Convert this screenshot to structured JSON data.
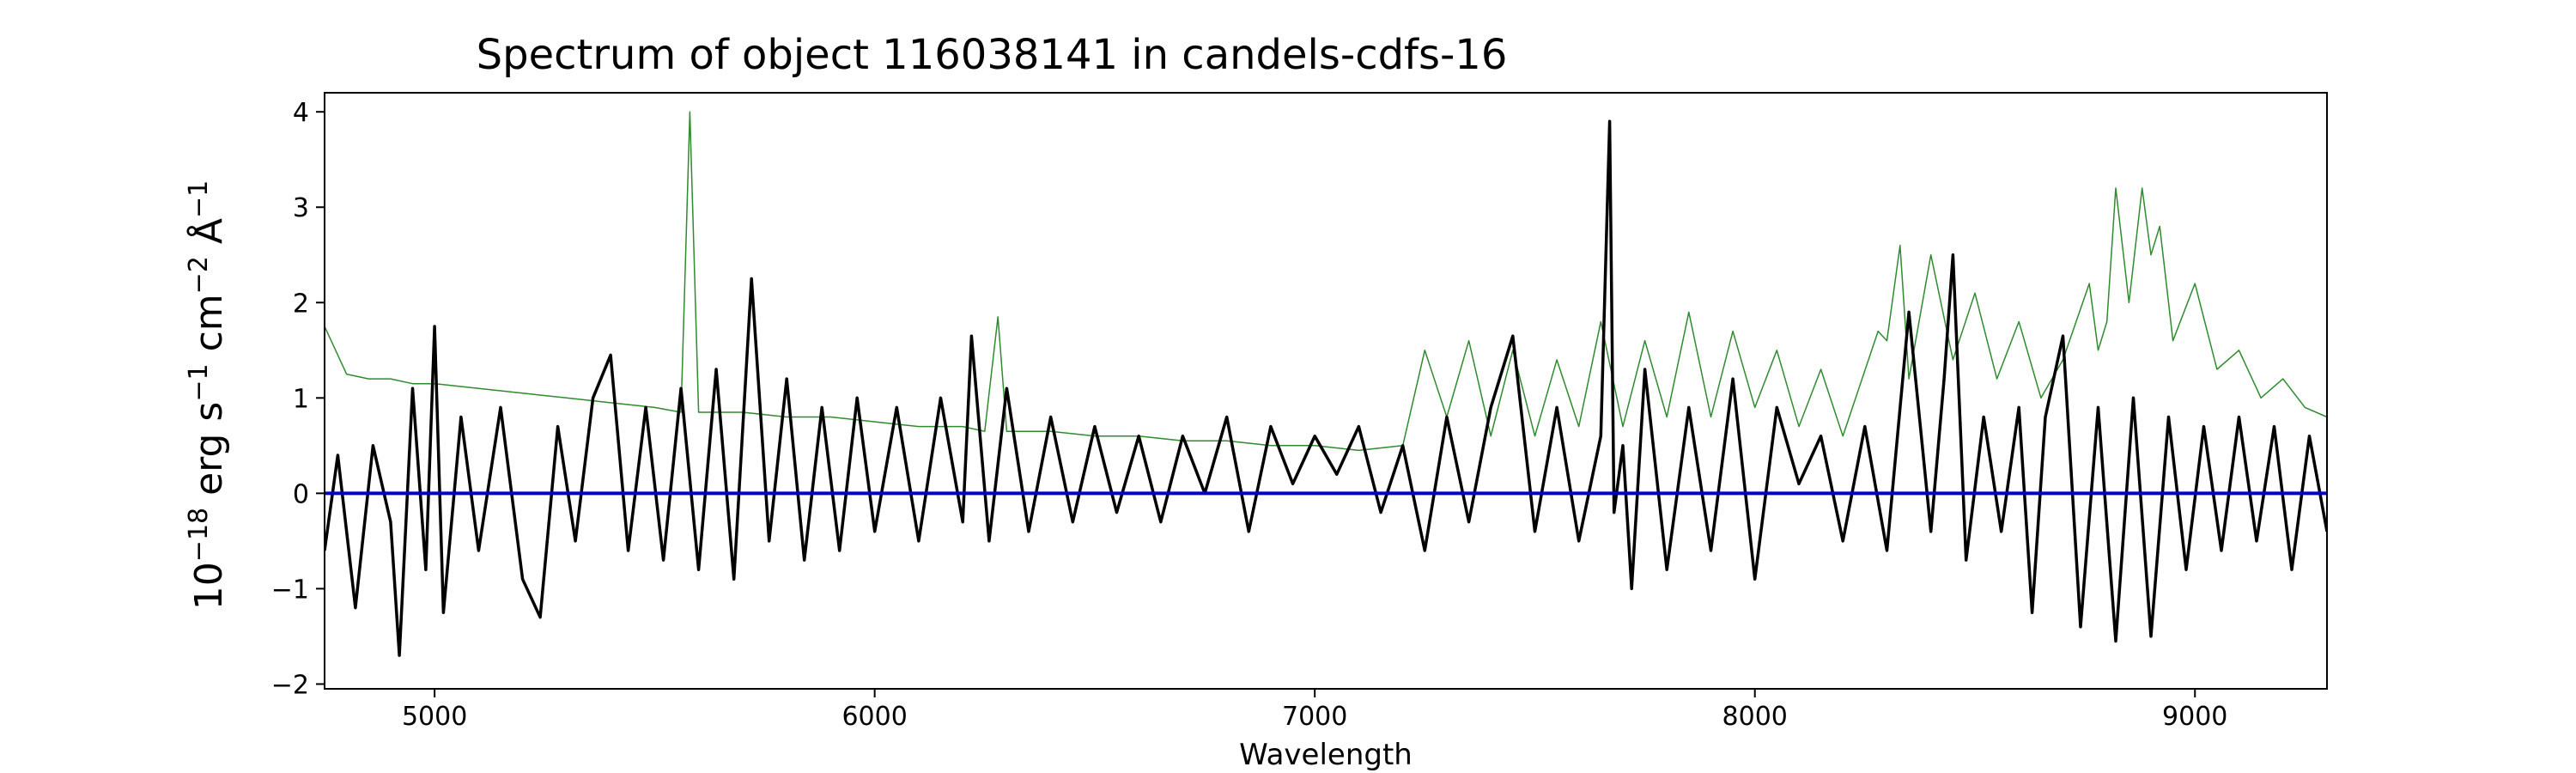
{
  "chart_data": {
    "type": "line",
    "title": "Spectrum of object 116038141 in candels-cdfs-16",
    "xlabel": "Wavelength",
    "ylabel": {
      "base": "10",
      "exponent": "−18",
      "parts": [
        {
          "text": " erg s"
        },
        {
          "sup": "−1"
        },
        {
          "text": " cm"
        },
        {
          "sup": "−2"
        },
        {
          "text": " Å"
        },
        {
          "sup": "−1"
        }
      ]
    },
    "xlim": [
      4750,
      9300
    ],
    "ylim": [
      -2.05,
      4.2
    ],
    "xticks": [
      5000,
      6000,
      7000,
      8000,
      9000
    ],
    "yticks": [
      -2,
      -1,
      0,
      1,
      2,
      3,
      4
    ],
    "grid": false,
    "legend": "none",
    "series": [
      {
        "role": "error",
        "color": "#2e8b2e",
        "x": [
          4750,
          4800,
          4850,
          4900,
          4950,
          5000,
          5100,
          5200,
          5300,
          5400,
          5500,
          5560,
          5580,
          5600,
          5700,
          5800,
          5900,
          6000,
          6100,
          6200,
          6250,
          6280,
          6300,
          6400,
          6500,
          6600,
          6700,
          6800,
          6900,
          7000,
          7100,
          7200,
          7250,
          7300,
          7350,
          7400,
          7450,
          7500,
          7550,
          7600,
          7650,
          7700,
          7750,
          7800,
          7850,
          7900,
          7950,
          8000,
          8050,
          8100,
          8150,
          8200,
          8280,
          8300,
          8330,
          8350,
          8400,
          8450,
          8500,
          8550,
          8600,
          8650,
          8700,
          8760,
          8780,
          8800,
          8820,
          8850,
          8880,
          8900,
          8920,
          8950,
          9000,
          9050,
          9100,
          9150,
          9200,
          9250,
          9300
        ],
        "values": [
          1.75,
          1.25,
          1.2,
          1.2,
          1.15,
          1.15,
          1.1,
          1.05,
          1.0,
          0.95,
          0.9,
          0.85,
          4.0,
          0.85,
          0.85,
          0.8,
          0.8,
          0.75,
          0.7,
          0.7,
          0.65,
          1.85,
          0.65,
          0.65,
          0.6,
          0.6,
          0.55,
          0.55,
          0.5,
          0.5,
          0.45,
          0.5,
          1.5,
          0.8,
          1.6,
          0.6,
          1.5,
          0.6,
          1.4,
          0.7,
          1.8,
          0.7,
          1.6,
          0.8,
          1.9,
          0.8,
          1.7,
          0.9,
          1.5,
          0.7,
          1.3,
          0.6,
          1.7,
          1.6,
          2.6,
          1.2,
          2.5,
          1.4,
          2.1,
          1.2,
          1.8,
          1.0,
          1.4,
          2.2,
          1.5,
          1.8,
          3.2,
          2.0,
          3.2,
          2.5,
          2.8,
          1.6,
          2.2,
          1.3,
          1.5,
          1.0,
          1.2,
          0.9,
          0.8
        ]
      },
      {
        "role": "flux",
        "color": "#000000",
        "x": [
          4750,
          4780,
          4820,
          4860,
          4900,
          4920,
          4950,
          4980,
          5000,
          5020,
          5060,
          5100,
          5150,
          5200,
          5240,
          5280,
          5320,
          5360,
          5400,
          5440,
          5480,
          5520,
          5560,
          5600,
          5640,
          5680,
          5720,
          5760,
          5800,
          5840,
          5880,
          5920,
          5960,
          6000,
          6050,
          6100,
          6150,
          6200,
          6220,
          6260,
          6300,
          6350,
          6400,
          6450,
          6500,
          6550,
          6600,
          6650,
          6700,
          6750,
          6800,
          6850,
          6900,
          6950,
          7000,
          7050,
          7100,
          7150,
          7200,
          7250,
          7300,
          7350,
          7400,
          7450,
          7500,
          7550,
          7600,
          7650,
          7670,
          7680,
          7700,
          7720,
          7750,
          7800,
          7850,
          7900,
          7950,
          8000,
          8050,
          8100,
          8150,
          8200,
          8250,
          8300,
          8350,
          8400,
          8430,
          8450,
          8480,
          8520,
          8560,
          8600,
          8630,
          8660,
          8700,
          8740,
          8780,
          8820,
          8860,
          8900,
          8940,
          8980,
          9020,
          9060,
          9100,
          9140,
          9180,
          9220,
          9260,
          9300
        ],
        "values": [
          -0.6,
          0.4,
          -1.2,
          0.5,
          -0.3,
          -1.7,
          1.1,
          -0.8,
          1.75,
          -1.25,
          0.8,
          -0.6,
          0.9,
          -0.9,
          -1.3,
          0.7,
          -0.5,
          1.0,
          1.45,
          -0.6,
          0.9,
          -0.7,
          1.1,
          -0.8,
          1.3,
          -0.9,
          2.25,
          -0.5,
          1.2,
          -0.7,
          0.9,
          -0.6,
          1.0,
          -0.4,
          0.9,
          -0.5,
          1.0,
          -0.3,
          1.65,
          -0.5,
          1.1,
          -0.4,
          0.8,
          -0.3,
          0.7,
          -0.2,
          0.6,
          -0.3,
          0.6,
          0.0,
          0.8,
          -0.4,
          0.7,
          0.1,
          0.6,
          0.2,
          0.7,
          -0.2,
          0.5,
          -0.6,
          0.8,
          -0.3,
          0.9,
          1.65,
          -0.4,
          0.9,
          -0.5,
          0.6,
          3.9,
          -0.2,
          0.5,
          -1.0,
          1.3,
          -0.8,
          0.9,
          -0.6,
          1.2,
          -0.9,
          0.9,
          0.1,
          0.6,
          -0.5,
          0.7,
          -0.6,
          1.9,
          -0.4,
          1.2,
          2.5,
          -0.7,
          0.8,
          -0.4,
          0.9,
          -1.25,
          0.8,
          1.65,
          -1.4,
          0.9,
          -1.55,
          1.0,
          -1.5,
          0.8,
          -0.8,
          0.7,
          -0.6,
          0.8,
          -0.5,
          0.7,
          -0.8,
          0.6,
          -0.4
        ]
      },
      {
        "role": "zero",
        "color": "#0000cc",
        "x": [
          4750,
          9300
        ],
        "values": [
          0,
          0
        ]
      }
    ]
  }
}
